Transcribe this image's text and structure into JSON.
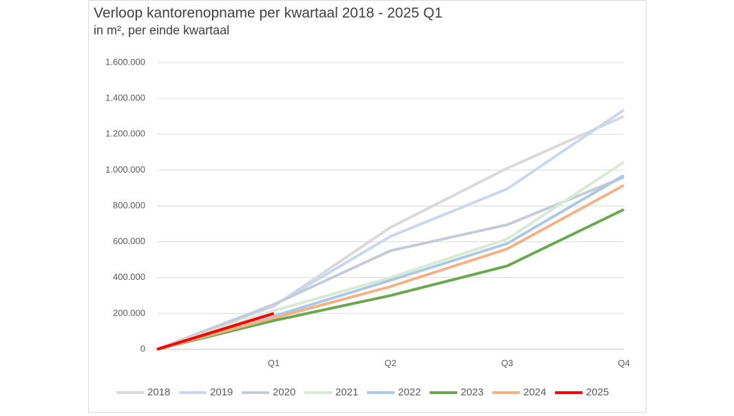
{
  "chart_data": {
    "type": "line",
    "title": "Verloop kantorenopname per kwartaal 2018 - 2025 Q1",
    "subtitle": "in m², per einde kwartaal",
    "categories": [
      null,
      "Q1",
      "Q2",
      "Q3",
      "Q4"
    ],
    "ylim": [
      0,
      1600000
    ],
    "yticks": [
      0,
      {
        "value": 200000,
        "label": "200.000"
      },
      {
        "value": 400000,
        "label": "400.000"
      },
      {
        "value": 600000,
        "label": "600.000"
      },
      {
        "value": 800000,
        "label": "800.000"
      },
      {
        "value": 1000000,
        "label": "1.000.000"
      },
      {
        "value": 1200000,
        "label": "1.200.000"
      },
      {
        "value": 1400000,
        "label": "1.400.000"
      },
      {
        "value": 1600000,
        "label": "1.600.000"
      }
    ],
    "grid": true,
    "legend": "bottom",
    "series": [
      {
        "name": "2018",
        "color": "#d9d9d9",
        "values": [
          0,
          240000,
          680000,
          1010000,
          1300000
        ]
      },
      {
        "name": "2019",
        "color": "#c9d7ee",
        "values": [
          0,
          245000,
          630000,
          895000,
          1335000
        ]
      },
      {
        "name": "2020",
        "color": "#c5cad9",
        "values": [
          0,
          250000,
          550000,
          695000,
          960000
        ]
      },
      {
        "name": "2021",
        "color": "#d9ead3",
        "values": [
          0,
          215000,
          400000,
          615000,
          1045000
        ]
      },
      {
        "name": "2022",
        "color": "#a9c9e6",
        "values": [
          0,
          185000,
          385000,
          590000,
          970000
        ]
      },
      {
        "name": "2023",
        "color": "#6aa84f",
        "values": [
          0,
          160000,
          300000,
          465000,
          780000
        ]
      },
      {
        "name": "2024",
        "color": "#f4b183",
        "values": [
          0,
          175000,
          350000,
          560000,
          915000
        ]
      },
      {
        "name": "2025",
        "color": "#ff0000",
        "values": [
          0,
          200000,
          null,
          null,
          null
        ]
      }
    ]
  }
}
